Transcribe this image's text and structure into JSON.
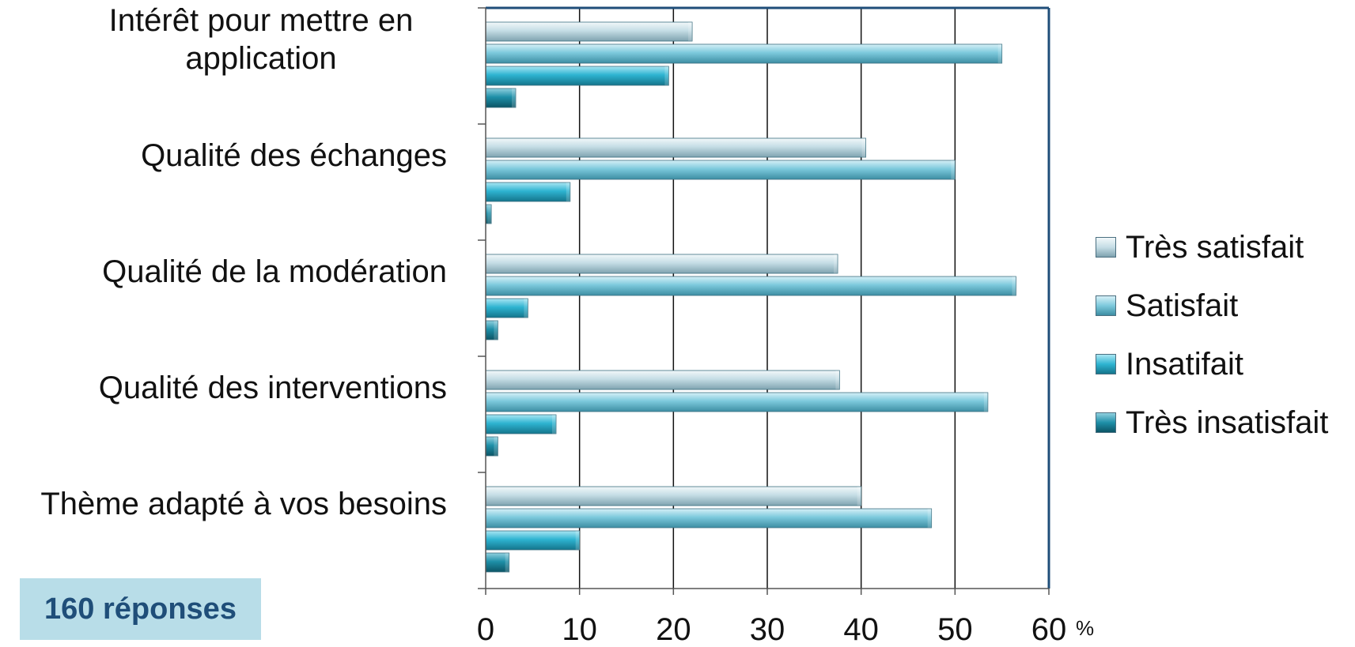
{
  "chart_data": {
    "type": "bar",
    "orientation": "horizontal",
    "categories": [
      "Intérêt pour mettre en application",
      "Qualité des échanges",
      "Qualité de la modération",
      "Qualité des interventions",
      "Thème adapté à vos besoins"
    ],
    "series": [
      {
        "name": "Très satisfait",
        "color": "#c5dde5",
        "values": [
          22,
          40.5,
          37.5,
          37.7,
          40
        ]
      },
      {
        "name": "Satisfait",
        "color": "#7cc9dc",
        "values": [
          55,
          50,
          56.5,
          53.5,
          47.5
        ]
      },
      {
        "name": "Insatifait",
        "color": "#2eb4d1",
        "values": [
          19.5,
          9,
          4.5,
          7.5,
          10
        ]
      },
      {
        "name": "Très insatisfait",
        "color": "#1e8fa8",
        "values": [
          3.2,
          0.6,
          1.3,
          1.3,
          2.5
        ]
      }
    ],
    "x_ticks": [
      "0",
      "10",
      "20",
      "30",
      "40",
      "50",
      "60"
    ],
    "xlim": [
      0,
      60
    ],
    "x_unit": "%",
    "grid": "vertical",
    "legend_position": "right"
  },
  "note": "160 réponses"
}
